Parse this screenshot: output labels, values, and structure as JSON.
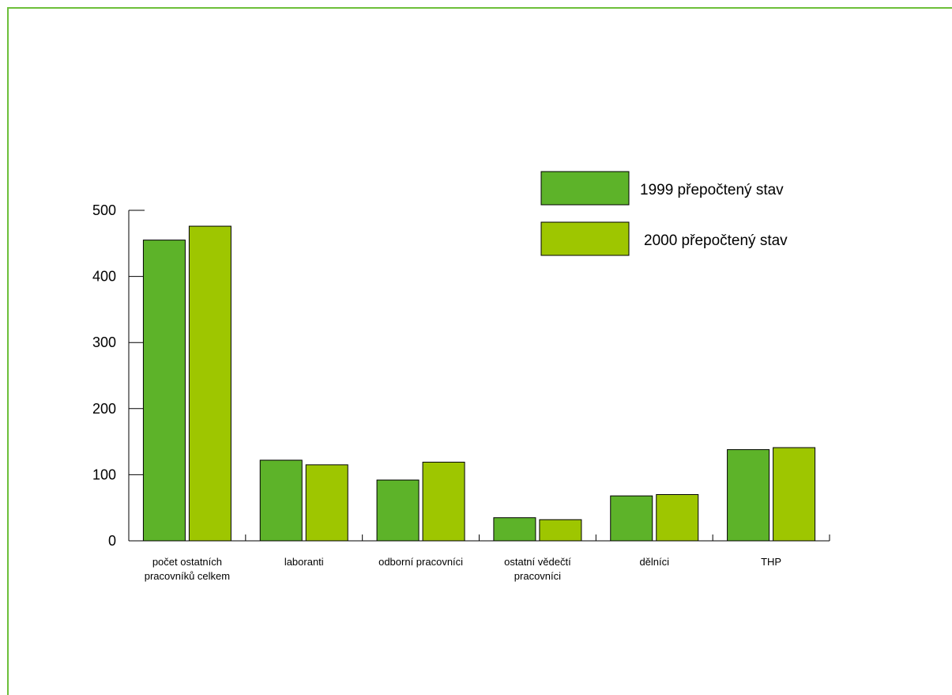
{
  "chart_data": {
    "type": "bar",
    "title": "",
    "xlabel": "",
    "ylabel": "",
    "ylim": [
      0,
      500
    ],
    "yticks": [
      0,
      100,
      200,
      300,
      400,
      500
    ],
    "grid": false,
    "legend_position": "top-right",
    "categories": [
      [
        "počet ostatních",
        "pracovníků celkem"
      ],
      [
        "laboranti"
      ],
      [
        "odborní pracovníci"
      ],
      [
        "ostatní vědečtí",
        "pracovníci"
      ],
      [
        "dělníci"
      ],
      [
        "THP"
      ]
    ],
    "series": [
      {
        "name": "1999 přepočtený stav",
        "color": "#5db329",
        "values": [
          455,
          122,
          92,
          35,
          68,
          138
        ]
      },
      {
        "name": "2000 přepočtený stav",
        "color": "#9ec600",
        "values": [
          476,
          115,
          119,
          32,
          70,
          141
        ]
      }
    ],
    "frame_color": "#6cbf3a"
  }
}
